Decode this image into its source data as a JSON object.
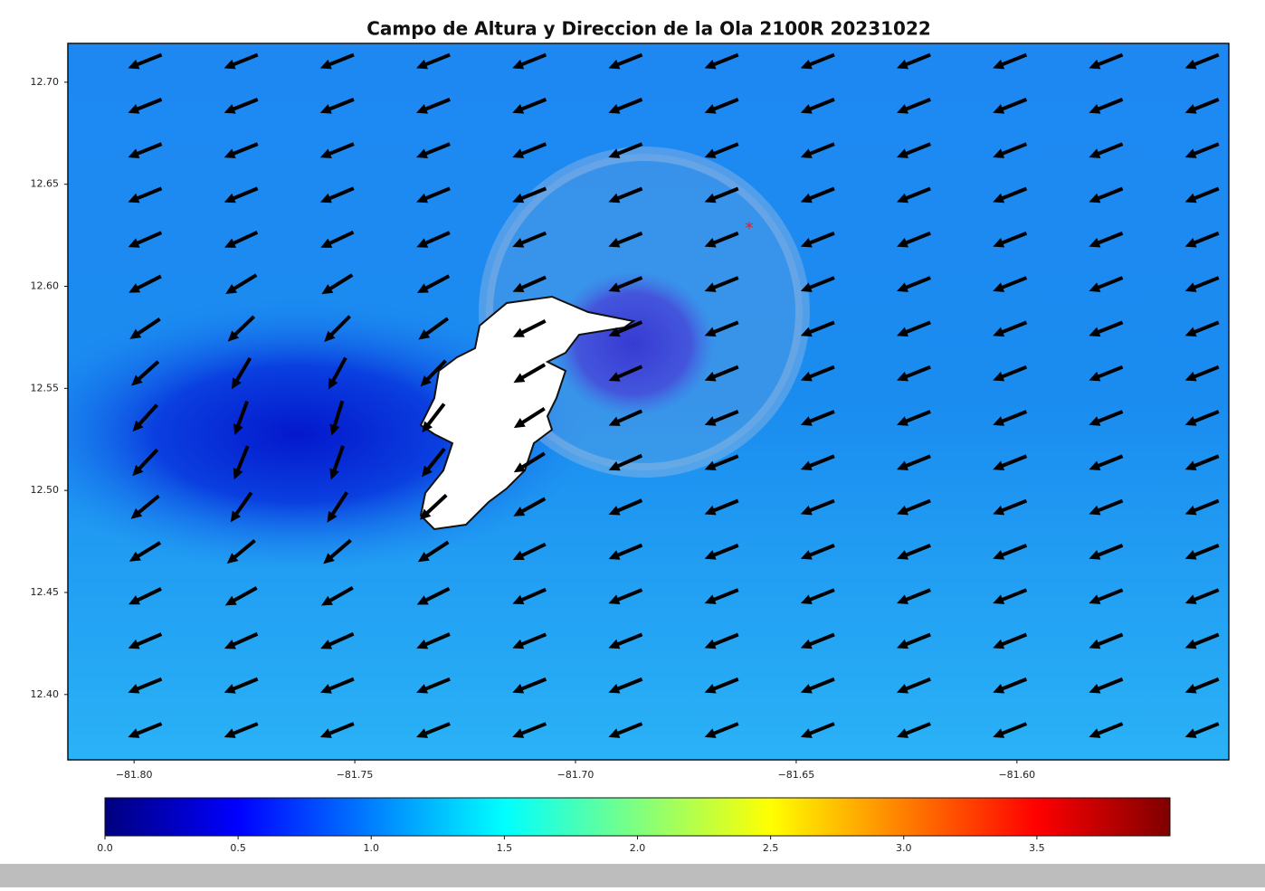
{
  "chart_data": {
    "type": "map",
    "title": "Campo de Altura y Direccion de la Ola 2100R 20231022",
    "xlim": [
      -81.815,
      -81.552
    ],
    "ylim": [
      12.368,
      12.719
    ],
    "xticks": [
      {
        "value": -81.8,
        "label": "−81.80"
      },
      {
        "value": -81.75,
        "label": "−81.75"
      },
      {
        "value": -81.7,
        "label": "−81.70"
      },
      {
        "value": -81.65,
        "label": "−81.65"
      },
      {
        "value": -81.6,
        "label": "−81.60"
      }
    ],
    "yticks": [
      {
        "value": 12.4,
        "label": "12.40"
      },
      {
        "value": 12.45,
        "label": "12.45"
      },
      {
        "value": 12.5,
        "label": "12.50"
      },
      {
        "value": 12.55,
        "label": "12.55"
      },
      {
        "value": 12.6,
        "label": "12.60"
      },
      {
        "value": 12.65,
        "label": "12.65"
      },
      {
        "value": 12.7,
        "label": "12.70"
      }
    ],
    "colormap": "jet",
    "clim": [
      0,
      4
    ],
    "cticks": [
      {
        "value": 0,
        "label": "0.0"
      },
      {
        "value": 0.5,
        "label": "0.5"
      },
      {
        "value": 1,
        "label": "1.0"
      },
      {
        "value": 1.5,
        "label": "1.5"
      },
      {
        "value": 2,
        "label": "2.0"
      },
      {
        "value": 2.5,
        "label": "2.5"
      },
      {
        "value": 3,
        "label": "3.0"
      },
      {
        "value": 3.5,
        "label": "3.5"
      }
    ]
  }
}
